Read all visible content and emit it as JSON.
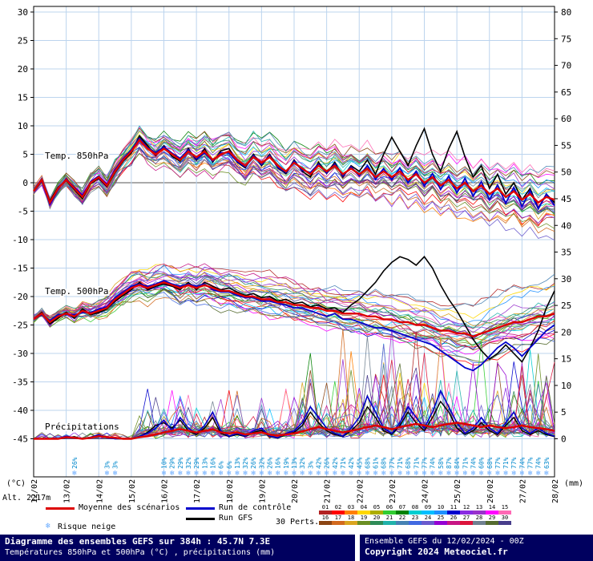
{
  "labels": {
    "unit_left": "(°C)",
    "unit_right": "(mm)",
    "altitude": "Alt. 2217m",
    "temp850": "Temp. 850hPa",
    "temp500": "Temp. 500hPa",
    "precip": "Précipitations",
    "legend_mean": "Moyenne des scénarios",
    "legend_control": "Run de contrôle",
    "legend_gfs": "Run GFS",
    "legend_perts": "30 Perts.",
    "legend_snow": "Risque neige",
    "snowflake": "❄"
  },
  "titlebar": {
    "title": "Diagramme des ensembles GEFS sur 384h : 45.7N 7.3E",
    "subtitle": "Températures 850hPa et 500hPa (°C) , précipitations (mm)",
    "run_info": "Ensemble GEFS du 12/02/2024 - 00Z",
    "copyright": "Copyright 2024 Meteociel.fr"
  },
  "colors": {
    "grid": "#bcd4ee",
    "zero_line": "#555555",
    "mean": "#dd0000",
    "control": "#0000cc",
    "gfs": "#000000",
    "snow_text": "#0088cc",
    "snow_flake": "#66aaff",
    "titlebar_bg": "#00005f",
    "axis_text": "#000000"
  },
  "perts": {
    "numbers": [
      "01",
      "02",
      "03",
      "04",
      "05",
      "06",
      "07",
      "08",
      "09",
      "10",
      "11",
      "12",
      "13",
      "14",
      "15",
      "16",
      "17",
      "18",
      "19",
      "20",
      "21",
      "22",
      "23",
      "24",
      "25",
      "26",
      "27",
      "28",
      "29",
      "30"
    ],
    "colors": [
      "#b22222",
      "#ff0000",
      "#ff7f00",
      "#ffd700",
      "#adad00",
      "#32cd32",
      "#008000",
      "#00ced1",
      "#00bfff",
      "#1e90ff",
      "#0000cd",
      "#8a2be2",
      "#9932cc",
      "#ff00ff",
      "#ff69b4",
      "#8b4513",
      "#d2691e",
      "#daa520",
      "#6b8e23",
      "#2e8b57",
      "#20b2aa",
      "#4682b4",
      "#4169e1",
      "#6a5acd",
      "#9400d3",
      "#c71585",
      "#dc143c",
      "#708090",
      "#556b2f",
      "#483d8b"
    ]
  },
  "chart_data": {
    "type": "line",
    "title": "Diagramme des ensembles GEFS sur 384h : 45.7N 7.3E",
    "subtitle": "Températures 850hPa et 500hPa (°C) , précipitations (mm)",
    "x_start_date": "12/02",
    "x_step_hours": 6,
    "x_points": 65,
    "x_ticks": [
      "12/02",
      "13/02",
      "14/02",
      "15/02",
      "16/02",
      "17/02",
      "18/02",
      "19/02",
      "20/02",
      "21/02",
      "22/02",
      "23/02",
      "24/02",
      "25/02",
      "26/02",
      "27/02",
      "28/02"
    ],
    "y_ticks_left": [
      30,
      25,
      20,
      15,
      10,
      5,
      0,
      -5,
      -10,
      -15,
      -20,
      -25,
      -30,
      -35,
      -40,
      -45
    ],
    "y_ticks_right": [
      80,
      75,
      70,
      65,
      60,
      55,
      50,
      45,
      40,
      35,
      30,
      25,
      20,
      15,
      10,
      5,
      0
    ],
    "ylim_left": [
      -45,
      30
    ],
    "ylim_right": [
      0,
      80
    ],
    "grid": true,
    "legend_position": "bottom",
    "series": [
      {
        "name": "Temp. 850hPa - Moyenne des scénarios",
        "group": "t850",
        "role": "mean",
        "unit": "°C",
        "color": "#dd0000",
        "width": 2.4,
        "values": [
          -1.5,
          0.5,
          -3.5,
          -1,
          0.5,
          -1,
          -2.5,
          0,
          1,
          -0.5,
          2,
          4,
          5.5,
          7.5,
          6,
          5,
          6,
          5,
          4,
          5.5,
          4.5,
          5.5,
          4,
          5,
          5.5,
          4,
          3,
          4.5,
          3.5,
          4.5,
          3,
          2,
          3.5,
          2.5,
          1.5,
          3,
          2,
          3,
          1.5,
          2.5,
          1.5,
          2.5,
          1,
          2,
          1,
          2,
          0.5,
          1.5,
          0,
          1,
          -0.5,
          0.5,
          -1,
          0,
          -1.5,
          -0.5,
          -2,
          -1,
          -2.5,
          -1.5,
          -3,
          -2,
          -3.5,
          -2.5,
          -3
        ]
      },
      {
        "name": "Temp. 850hPa - Run de contrôle",
        "group": "t850",
        "role": "control",
        "unit": "°C",
        "color": "#0000cc",
        "width": 1.8,
        "values": [
          -1.5,
          0.3,
          -3.8,
          -1.2,
          0.7,
          -0.8,
          -2.2,
          0.2,
          1.2,
          -0.3,
          2.3,
          4.2,
          5.8,
          7.8,
          6.2,
          5.3,
          6.3,
          5.2,
          4.3,
          5.8,
          4.2,
          5.2,
          3.8,
          5.3,
          5.2,
          3.7,
          2.8,
          4.8,
          3.2,
          4.8,
          2.7,
          1.8,
          3.8,
          2.2,
          1.8,
          3.3,
          1.7,
          3.3,
          1.2,
          2.8,
          1.2,
          3.0,
          0.6,
          2.5,
          0.5,
          2.6,
          0.0,
          2.0,
          -0.6,
          1.6,
          -1.2,
          1.2,
          -1.8,
          0.8,
          -2.4,
          0.2,
          -3.0,
          -0.4,
          -3.6,
          -0.8,
          -4.2,
          -1.4,
          -4.6,
          -2.0,
          -4.0
        ]
      },
      {
        "name": "Temp. 850hPa - Run GFS",
        "group": "t850",
        "role": "gfs",
        "unit": "°C",
        "color": "#000000",
        "width": 1.6,
        "values": [
          -1.5,
          0.6,
          -3.2,
          -0.8,
          0.4,
          -1.2,
          -2.8,
          -0.2,
          0.8,
          -0.7,
          1.8,
          3.8,
          5.2,
          8.2,
          6.5,
          4.8,
          6.5,
          4.6,
          3.8,
          6.0,
          4.0,
          6.0,
          3.6,
          5.6,
          6.0,
          3.6,
          2.6,
          5.0,
          3.0,
          5.0,
          2.6,
          1.6,
          4.0,
          2.0,
          1.0,
          3.6,
          1.6,
          3.6,
          1.0,
          3.0,
          2.0,
          4.0,
          1.5,
          5.0,
          8.0,
          5.5,
          3.0,
          6.5,
          9.5,
          5.0,
          2.0,
          6.0,
          9.0,
          4.5,
          1.0,
          3.0,
          -1.0,
          1.5,
          -2.0,
          0.0,
          -3.0,
          -1.0,
          -4.5,
          -2.0,
          -3.5
        ]
      },
      {
        "name": "Temp. 500hPa - Moyenne des scénarios",
        "group": "t500",
        "role": "mean",
        "unit": "°C",
        "color": "#dd0000",
        "width": 2.4,
        "values": [
          -24,
          -23,
          -24.5,
          -23.5,
          -23,
          -23.5,
          -22.5,
          -23,
          -22.5,
          -22,
          -20.5,
          -19.5,
          -18.5,
          -18,
          -18.5,
          -18,
          -17.5,
          -18,
          -18.5,
          -18,
          -18.5,
          -18,
          -18.5,
          -19,
          -19,
          -19.5,
          -20,
          -20,
          -20.5,
          -20.5,
          -21,
          -21,
          -21.5,
          -21.5,
          -22,
          -22,
          -22.5,
          -22.5,
          -23,
          -23,
          -23,
          -23.5,
          -23.5,
          -24,
          -24,
          -24.5,
          -24.5,
          -25,
          -25,
          -25.5,
          -26,
          -26,
          -26.5,
          -26.5,
          -27,
          -26.5,
          -26,
          -25.5,
          -25,
          -24.5,
          -24.5,
          -24,
          -23.5,
          -23.5,
          -23
        ]
      },
      {
        "name": "Temp. 500hPa - Run de contrôle",
        "group": "t500",
        "role": "control",
        "unit": "°C",
        "color": "#0000cc",
        "width": 1.8,
        "values": [
          -24,
          -23.2,
          -24.2,
          -23.2,
          -23.2,
          -23.2,
          -22.8,
          -22.8,
          -22.2,
          -21.8,
          -20.2,
          -19.2,
          -18.2,
          -17.8,
          -18.2,
          -17.8,
          -17.2,
          -17.8,
          -18.2,
          -17.8,
          -18.2,
          -17.8,
          -18.8,
          -19.2,
          -19.2,
          -19.8,
          -20.2,
          -20.2,
          -20.8,
          -20.8,
          -21.2,
          -21.5,
          -22,
          -22,
          -22.5,
          -23,
          -23.5,
          -23,
          -24,
          -24,
          -24.5,
          -25,
          -25.5,
          -25.5,
          -26,
          -26.5,
          -27,
          -27.5,
          -28,
          -28.5,
          -29.5,
          -30.5,
          -31.5,
          -32.5,
          -33,
          -32,
          -30.5,
          -29,
          -28,
          -29,
          -30.5,
          -29,
          -27.5,
          -26,
          -25
        ]
      },
      {
        "name": "Temp. 500hPa - Run GFS",
        "group": "t500",
        "role": "gfs",
        "unit": "°C",
        "color": "#000000",
        "width": 1.6,
        "values": [
          -24,
          -22.8,
          -24.8,
          -23.8,
          -22.8,
          -23.8,
          -22.2,
          -23.2,
          -22.8,
          -22.2,
          -20.8,
          -19.8,
          -18.8,
          -17.5,
          -18.8,
          -18.2,
          -17.8,
          -18.2,
          -18.8,
          -17.5,
          -18.8,
          -17.5,
          -18.2,
          -18.8,
          -18.5,
          -19.2,
          -19.8,
          -19.5,
          -20.2,
          -20,
          -20.8,
          -20.5,
          -21.2,
          -21,
          -21.8,
          -21.5,
          -22.2,
          -22,
          -22.8,
          -21.5,
          -20.5,
          -19,
          -17.5,
          -15.5,
          -14,
          -13,
          -13.5,
          -14.5,
          -13,
          -15,
          -18,
          -20.5,
          -22.5,
          -25,
          -27.5,
          -29.5,
          -31,
          -30,
          -28.5,
          -30,
          -31.5,
          -29,
          -26,
          -22,
          -19
        ]
      },
      {
        "name": "Précipitations - Moyenne des scénarios",
        "group": "precip",
        "role": "mean",
        "unit": "mm",
        "color": "#dd0000",
        "width": 2.4,
        "values": [
          0,
          0,
          0,
          0,
          0.3,
          0.2,
          0,
          0.2,
          0.5,
          0.3,
          0.2,
          0,
          0,
          0.3,
          0.5,
          0.8,
          1.2,
          1.5,
          1.8,
          1.5,
          1.2,
          1.5,
          1.8,
          1.2,
          1.0,
          1.2,
          0.8,
          1.0,
          1.2,
          0.8,
          0.6,
          0.8,
          1.0,
          1.4,
          1.8,
          2.2,
          1.8,
          1.5,
          1.2,
          1.5,
          1.8,
          2.2,
          2.5,
          2.2,
          1.8,
          2.2,
          2.5,
          2.8,
          2.5,
          2.2,
          2.5,
          2.8,
          3.0,
          2.8,
          2.5,
          2.2,
          2.5,
          2.2,
          2.0,
          2.2,
          2.5,
          2.2,
          2.0,
          1.8,
          1.5
        ]
      },
      {
        "name": "Précipitations - Run de contrôle",
        "group": "precip",
        "role": "control",
        "unit": "mm",
        "color": "#0000cc",
        "width": 1.6,
        "values": [
          0,
          0,
          0,
          0,
          0.5,
          0.2,
          0,
          0.3,
          0.8,
          0.2,
          0,
          0,
          0,
          0.5,
          1,
          2,
          3.5,
          1.5,
          4,
          2,
          1,
          2.5,
          5,
          1.5,
          0.5,
          1,
          0.5,
          1.5,
          2,
          0.5,
          0.2,
          1,
          1.5,
          3,
          6,
          4,
          2,
          1,
          0.5,
          2,
          4,
          8,
          5,
          2,
          1,
          3,
          6,
          4,
          2,
          5,
          9,
          6,
          3,
          1,
          2,
          4,
          2,
          1,
          3,
          5,
          2,
          1,
          2,
          1,
          0.5
        ]
      },
      {
        "name": "Précipitations - Run GFS",
        "group": "precip",
        "role": "gfs",
        "unit": "mm",
        "color": "#000000",
        "width": 1.4,
        "values": [
          0,
          0,
          0,
          0,
          0.2,
          0.4,
          0,
          0.2,
          0.6,
          0.3,
          0,
          0,
          0,
          0.4,
          1.2,
          2.5,
          3,
          2,
          3.5,
          1.5,
          0.8,
          2,
          4,
          1,
          0.4,
          0.8,
          0.4,
          1.2,
          1.6,
          0.4,
          0.1,
          0.8,
          1.2,
          2.5,
          5,
          3,
          1.5,
          0.8,
          0.4,
          1.5,
          3,
          6,
          4,
          1.5,
          0.8,
          2.5,
          5,
          3,
          1.5,
          4,
          7,
          5,
          2,
          0.8,
          1.5,
          3,
          1.5,
          0.8,
          2.5,
          4,
          1.5,
          0.8,
          1.5,
          0.8,
          0.4
        ]
      }
    ],
    "ensemble": {
      "count": 30,
      "note": "30 perturbation members drawn as thin colored plume lines around each mean; individual values not readable at source resolution, regenerated as bounded noise around the mean",
      "spread_850_per_step": 0.145,
      "spread_500_per_step": 0.185,
      "precip_max_early": 10,
      "precip_max_late": 22
    },
    "snow_risk_pct": [
      [
        5,
        26
      ],
      [
        9,
        3
      ],
      [
        10,
        3
      ],
      [
        16,
        10
      ],
      [
        17,
        29
      ],
      [
        18,
        29
      ],
      [
        19,
        32
      ],
      [
        20,
        29
      ],
      [
        21,
        13
      ],
      [
        22,
        16
      ],
      [
        23,
        6
      ],
      [
        24,
        6
      ],
      [
        25,
        13
      ],
      [
        26,
        32
      ],
      [
        27,
        26
      ],
      [
        28,
        32
      ],
      [
        29,
        26
      ],
      [
        30,
        16
      ],
      [
        31,
        19
      ],
      [
        32,
        13
      ],
      [
        33,
        32
      ],
      [
        34,
        3
      ],
      [
        35,
        42
      ],
      [
        36,
        26
      ],
      [
        37,
        42
      ],
      [
        38,
        71
      ],
      [
        39,
        42
      ],
      [
        40,
        45
      ],
      [
        41,
        68
      ],
      [
        42,
        61
      ],
      [
        43,
        68
      ],
      [
        44,
        77
      ],
      [
        45,
        71
      ],
      [
        46,
        68
      ],
      [
        47,
        71
      ],
      [
        48,
        77
      ],
      [
        49,
        74
      ],
      [
        50,
        58
      ],
      [
        51,
        87
      ],
      [
        52,
        84
      ],
      [
        53,
        71
      ],
      [
        54,
        74
      ],
      [
        55,
        60
      ],
      [
        56,
        68
      ],
      [
        57,
        77
      ],
      [
        58,
        71
      ],
      [
        59,
        77
      ],
      [
        60,
        74
      ],
      [
        61,
        77
      ],
      [
        62,
        74
      ],
      [
        63,
        63
      ]
    ]
  }
}
